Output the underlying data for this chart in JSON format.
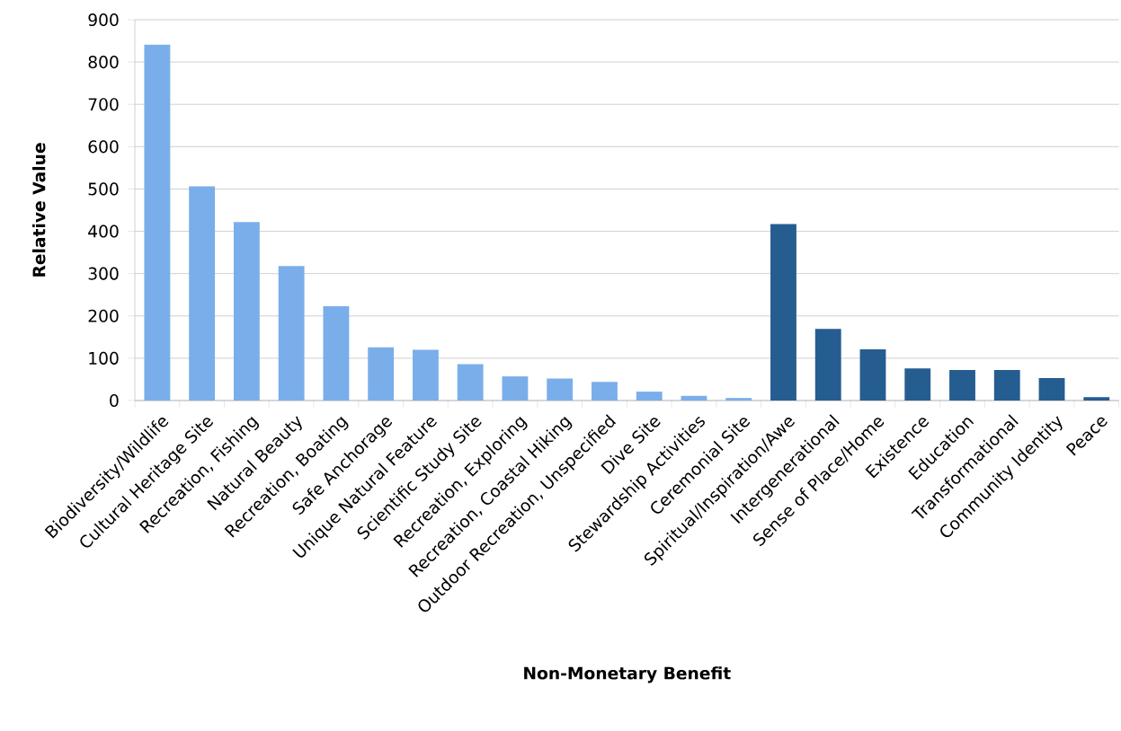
{
  "chart_data": {
    "type": "bar",
    "xlabel": "Non-Monetary Benefit",
    "ylabel": "Relative Value",
    "categories": [
      "Biodiversity/Wildlife",
      "Cultural Heritage Site",
      "Recreation, Fishing",
      "Natural Beauty",
      "Recreation, Boating",
      "Safe Anchorage",
      "Unique Natural Feature",
      "Scientific Study Site",
      "Recreation, Exploring",
      "Recreation, Coastal Hiking",
      "Outdoor Recreation, Unspecified",
      "Dive Site",
      "Stewardship Activities",
      "Ceremonial Site",
      "Spiritual/Inspiration/Awe",
      "Intergenerational",
      "Sense of Place/Home",
      "Existence",
      "Education",
      "Transformational",
      "Community Identity",
      "Peace"
    ],
    "values": [
      841,
      506,
      422,
      318,
      223,
      126,
      120,
      86,
      57,
      52,
      44,
      21,
      11,
      6,
      417,
      169,
      121,
      76,
      72,
      72,
      53,
      8
    ],
    "colors": [
      "#7aaeea",
      "#7aaeea",
      "#7aaeea",
      "#7aaeea",
      "#7aaeea",
      "#7aaeea",
      "#7aaeea",
      "#7aaeea",
      "#7aaeea",
      "#7aaeea",
      "#7aaeea",
      "#7aaeea",
      "#7aaeea",
      "#7aaeea",
      "#265d91",
      "#265d91",
      "#265d91",
      "#265d91",
      "#265d91",
      "#265d91",
      "#265d91",
      "#265d91"
    ],
    "ylim": [
      0,
      900
    ],
    "yticks": [
      0,
      100,
      200,
      300,
      400,
      500,
      600,
      700,
      800,
      900
    ],
    "grid": "y"
  }
}
